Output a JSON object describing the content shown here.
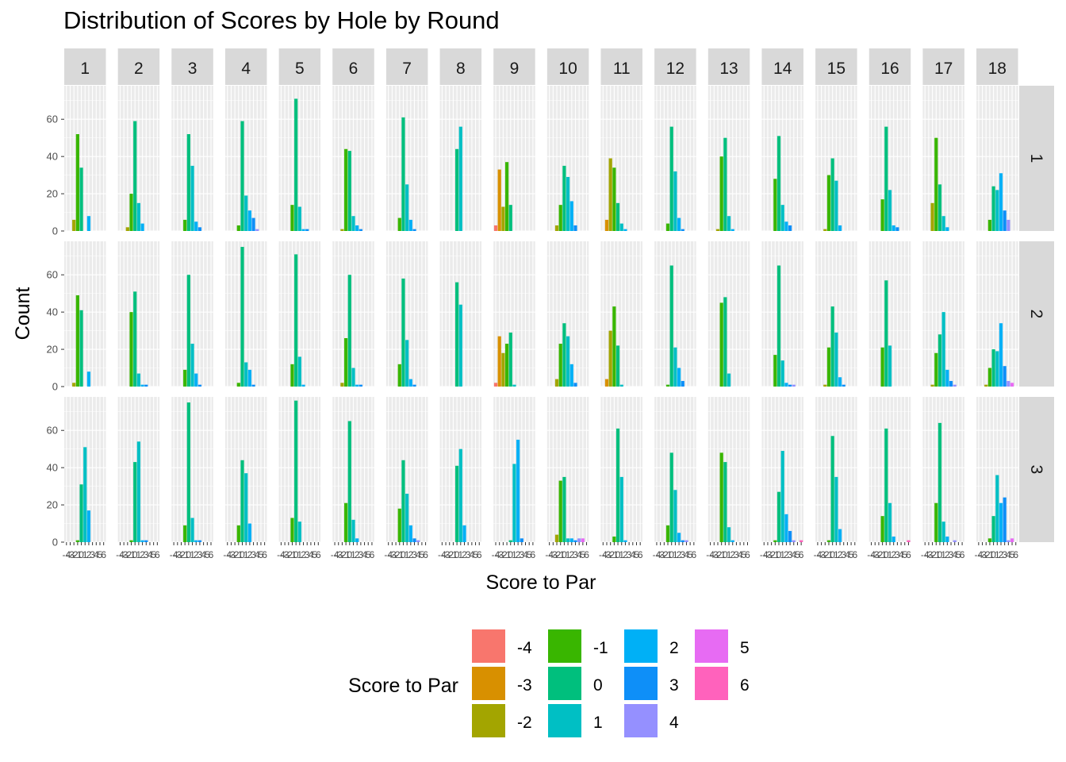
{
  "chart_data": {
    "type": "bar",
    "title": "Distribution of Scores by Hole by Round",
    "xlabel": "Score to Par",
    "ylabel": "Count",
    "x_ticks": [
      "-4",
      "-3",
      "-2",
      "-1",
      "0",
      "1",
      "2",
      "3",
      "4",
      "5",
      "6"
    ],
    "ylim": [
      0,
      78
    ],
    "y_ticks": [
      0,
      20,
      40,
      60
    ],
    "grid": true,
    "legend": {
      "title": "Score to Par",
      "position": "bottom",
      "entries": [
        {
          "label": "-4",
          "color": "#F8766D"
        },
        {
          "label": "-3",
          "color": "#D89000"
        },
        {
          "label": "-2",
          "color": "#A3A500"
        },
        {
          "label": "-1",
          "color": "#39B600"
        },
        {
          "label": "0",
          "color": "#00BF7D"
        },
        {
          "label": "1",
          "color": "#00BFC4"
        },
        {
          "label": "2",
          "color": "#00B0F6"
        },
        {
          "label": "3",
          "color": "#0E8FF8"
        },
        {
          "label": "4",
          "color": "#9590FF"
        },
        {
          "label": "5",
          "color": "#E76BF3"
        },
        {
          "label": "6",
          "color": "#FF62BC"
        }
      ]
    },
    "facet_cols": [
      "1",
      "2",
      "3",
      "4",
      "5",
      "6",
      "7",
      "8",
      "9",
      "10",
      "11",
      "12",
      "13",
      "14",
      "15",
      "16",
      "17",
      "18"
    ],
    "facet_rows": [
      "1",
      "2",
      "3"
    ],
    "x_values": [
      -4,
      -3,
      -2,
      -1,
      0,
      1,
      2,
      3,
      4,
      5,
      6
    ],
    "counts": [
      [
        [
          0,
          0,
          6,
          52,
          34,
          0,
          8,
          0,
          0,
          0,
          0
        ],
        [
          0,
          0,
          2,
          20,
          59,
          15,
          4,
          0,
          0,
          0,
          0
        ],
        [
          0,
          0,
          0,
          6,
          52,
          35,
          5,
          2,
          0,
          0,
          0
        ],
        [
          0,
          0,
          0,
          3,
          59,
          19,
          11,
          7,
          1,
          0,
          0
        ],
        [
          0,
          0,
          0,
          14,
          71,
          13,
          1,
          1,
          0,
          0,
          0
        ],
        [
          0,
          0,
          1,
          44,
          43,
          8,
          3,
          1,
          0,
          0,
          0
        ],
        [
          0,
          0,
          0,
          7,
          61,
          25,
          6,
          1,
          0,
          0,
          0
        ],
        [
          0,
          0,
          0,
          0,
          44,
          56,
          0,
          0,
          0,
          0,
          0
        ],
        [
          3,
          33,
          13,
          37,
          14,
          0,
          0,
          0,
          0,
          0,
          0
        ],
        [
          0,
          0,
          3,
          14,
          35,
          29,
          16,
          3,
          0,
          0,
          0
        ],
        [
          0,
          6,
          39,
          34,
          15,
          4,
          1,
          0,
          0,
          0,
          0
        ],
        [
          0,
          0,
          0,
          4,
          56,
          32,
          7,
          1,
          0,
          0,
          0
        ],
        [
          0,
          0,
          1,
          40,
          50,
          8,
          1,
          0,
          0,
          0,
          0
        ],
        [
          0,
          0,
          0,
          28,
          51,
          14,
          5,
          3,
          0,
          0,
          0
        ],
        [
          0,
          0,
          1,
          30,
          39,
          27,
          3,
          0,
          0,
          0,
          0
        ],
        [
          0,
          0,
          0,
          17,
          56,
          22,
          3,
          2,
          0,
          0,
          0
        ],
        [
          0,
          0,
          15,
          50,
          25,
          8,
          2,
          0,
          0,
          0,
          0
        ],
        [
          0,
          0,
          0,
          6,
          24,
          22,
          31,
          11,
          6,
          0,
          0
        ]
      ],
      [
        [
          0,
          0,
          2,
          49,
          41,
          0,
          8,
          0,
          0,
          0,
          0
        ],
        [
          0,
          0,
          0,
          40,
          51,
          7,
          1,
          1,
          0,
          0,
          0
        ],
        [
          0,
          0,
          0,
          9,
          60,
          23,
          7,
          1,
          0,
          0,
          0
        ],
        [
          0,
          0,
          0,
          2,
          75,
          13,
          9,
          1,
          0,
          0,
          0
        ],
        [
          0,
          0,
          0,
          12,
          71,
          16,
          1,
          0,
          0,
          0,
          0
        ],
        [
          0,
          0,
          2,
          26,
          60,
          10,
          1,
          1,
          0,
          0,
          0
        ],
        [
          0,
          0,
          0,
          12,
          58,
          25,
          4,
          1,
          0,
          0,
          0
        ],
        [
          0,
          0,
          0,
          0,
          56,
          44,
          0,
          0,
          0,
          0,
          0
        ],
        [
          2,
          27,
          18,
          23,
          29,
          1,
          0,
          0,
          0,
          0,
          0
        ],
        [
          0,
          0,
          4,
          23,
          34,
          27,
          12,
          2,
          0,
          0,
          0
        ],
        [
          0,
          4,
          30,
          43,
          22,
          1,
          0,
          0,
          0,
          0,
          0
        ],
        [
          0,
          0,
          0,
          1,
          65,
          21,
          10,
          3,
          0,
          0,
          0
        ],
        [
          0,
          0,
          0,
          45,
          48,
          7,
          0,
          0,
          0,
          0,
          0
        ],
        [
          0,
          0,
          0,
          17,
          65,
          14,
          2,
          1,
          1,
          0,
          0
        ],
        [
          0,
          0,
          1,
          21,
          43,
          29,
          5,
          1,
          0,
          0,
          0
        ],
        [
          0,
          0,
          0,
          21,
          57,
          22,
          0,
          0,
          0,
          0,
          0
        ],
        [
          0,
          0,
          1,
          18,
          28,
          40,
          9,
          3,
          1,
          0,
          0
        ],
        [
          0,
          0,
          1,
          10,
          20,
          19,
          34,
          11,
          3,
          2,
          0
        ]
      ],
      [
        [
          0,
          0,
          0,
          1,
          31,
          51,
          17,
          0,
          0,
          0,
          0
        ],
        [
          0,
          0,
          0,
          1,
          43,
          54,
          1,
          1,
          0,
          0,
          0
        ],
        [
          0,
          0,
          0,
          9,
          75,
          13,
          1,
          1,
          0,
          0,
          0
        ],
        [
          0,
          0,
          0,
          9,
          44,
          37,
          10,
          0,
          0,
          0,
          0
        ],
        [
          0,
          0,
          0,
          13,
          76,
          11,
          0,
          0,
          0,
          0,
          0
        ],
        [
          0,
          0,
          0,
          21,
          65,
          12,
          2,
          0,
          0,
          0,
          0
        ],
        [
          0,
          0,
          0,
          18,
          44,
          26,
          9,
          2,
          1,
          0,
          0
        ],
        [
          0,
          0,
          0,
          0,
          41,
          50,
          9,
          0,
          0,
          0,
          0
        ],
        [
          0,
          0,
          0,
          0,
          1,
          42,
          55,
          2,
          0,
          0,
          0
        ],
        [
          0,
          0,
          4,
          33,
          35,
          2,
          2,
          1,
          2,
          2,
          0
        ],
        [
          0,
          0,
          0,
          3,
          61,
          35,
          1,
          0,
          0,
          0,
          0
        ],
        [
          0,
          0,
          0,
          9,
          48,
          28,
          5,
          1,
          1,
          0,
          0
        ],
        [
          0,
          0,
          0,
          48,
          43,
          8,
          1,
          0,
          0,
          0,
          0
        ],
        [
          0,
          0,
          0,
          1,
          27,
          49,
          15,
          6,
          1,
          0,
          1
        ],
        [
          0,
          0,
          0,
          1,
          57,
          35,
          7,
          0,
          0,
          0,
          0
        ],
        [
          0,
          0,
          0,
          14,
          61,
          21,
          3,
          0,
          0,
          0,
          1
        ],
        [
          0,
          0,
          0,
          21,
          64,
          11,
          3,
          0,
          1,
          0,
          0
        ],
        [
          0,
          0,
          0,
          2,
          14,
          36,
          21,
          24,
          1,
          2,
          0
        ]
      ]
    ]
  }
}
